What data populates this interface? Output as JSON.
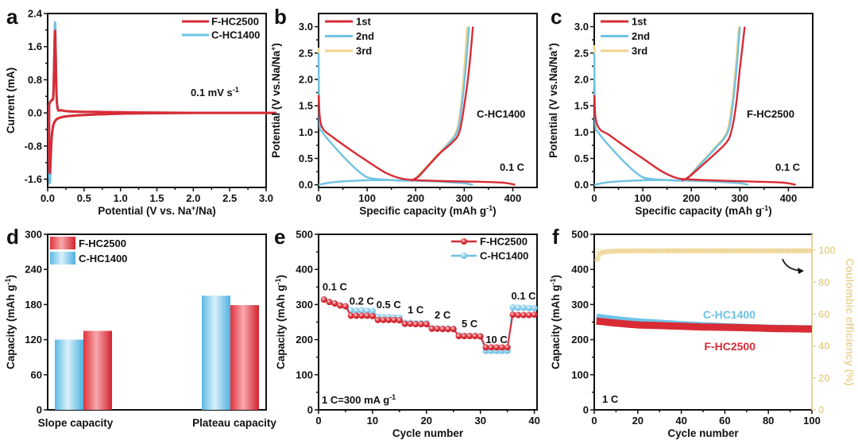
{
  "colors": {
    "red": "#d92b35",
    "blue": "#6ec3e6",
    "yellow": "#f0d38c",
    "ce_axis": "#e8d59a"
  },
  "chart_data": [
    {
      "panel": "a",
      "type": "line",
      "xlabel": "Potential (V vs. Na+/Na)",
      "ylabel": "Current (mA)",
      "xlim": [
        0,
        3.0
      ],
      "ylim": [
        -1.8,
        2.4
      ],
      "xticks": [
        "0.0",
        "0.5",
        "1.0",
        "1.5",
        "2.0",
        "2.5",
        "3.0"
      ],
      "xtick_values": [
        0,
        0.5,
        1.0,
        1.5,
        2.0,
        2.5,
        3.0
      ],
      "yticks": [
        "-1.6",
        "-0.8",
        "0.0",
        "0.8",
        "1.6",
        "2.4"
      ],
      "ytick_values": [
        -1.6,
        -0.8,
        0,
        0.8,
        1.6,
        2.4
      ],
      "annotation": "0.1 mV s-1",
      "legend": [
        "F-HC2500",
        "C-HC1400"
      ],
      "legend_position": "top-right",
      "series": [
        {
          "name": "C-HC1400",
          "color": "blue",
          "x": [
            0.02,
            0.03,
            0.04,
            0.06,
            0.08,
            0.1,
            0.11,
            0.13,
            0.2,
            0.4,
            0.8,
            1.2,
            2.0,
            3.0,
            3.0,
            2.0,
            1.2,
            0.8,
            0.4,
            0.2,
            0.1,
            0.06,
            0.04,
            0.03,
            0.02,
            0.02
          ],
          "y": [
            0.2,
            0.25,
            0.28,
            0.32,
            0.5,
            2.15,
            1.5,
            0.2,
            0.06,
            0.03,
            0.02,
            0.01,
            0.0,
            0.0,
            0.0,
            0.0,
            -0.01,
            -0.03,
            -0.06,
            -0.1,
            -0.2,
            -0.5,
            -1.2,
            -1.7,
            -1.2,
            0.2
          ]
        },
        {
          "name": "F-HC2500",
          "color": "red",
          "x": [
            0.02,
            0.03,
            0.04,
            0.06,
            0.08,
            0.1,
            0.11,
            0.13,
            0.2,
            0.4,
            0.8,
            1.2,
            2.0,
            3.0,
            3.0,
            2.0,
            1.2,
            0.8,
            0.4,
            0.2,
            0.1,
            0.06,
            0.04,
            0.03,
            0.02,
            0.02
          ],
          "y": [
            0.2,
            0.25,
            0.28,
            0.32,
            0.5,
            1.95,
            1.4,
            0.2,
            0.06,
            0.03,
            0.02,
            0.01,
            0.0,
            0.0,
            0.0,
            0.0,
            -0.01,
            -0.03,
            -0.06,
            -0.1,
            -0.2,
            -0.5,
            -1.1,
            -1.45,
            -1.1,
            0.2
          ]
        }
      ]
    },
    {
      "panel": "b",
      "type": "line",
      "xlabel": "Specific capacity (mAh g-1)",
      "ylabel": "Potential (V vs.Na/Na+)",
      "xlim": [
        0,
        450
      ],
      "ylim": [
        -0.05,
        3.25
      ],
      "xticks": [
        "0",
        "100",
        "200",
        "300",
        "400"
      ],
      "xtick_values": [
        0,
        100,
        200,
        300,
        400
      ],
      "yticks": [
        "0.0",
        "0.5",
        "1.0",
        "1.5",
        "2.0",
        "2.5",
        "3.0"
      ],
      "ytick_values": [
        0,
        0.5,
        1.0,
        1.5,
        2.0,
        2.5,
        3.0
      ],
      "annotations": [
        "C-HC1400",
        "0.1 C"
      ],
      "legend": [
        "1st",
        "2nd",
        "3rd"
      ],
      "legend_position": "top-left",
      "series": [
        {
          "name": "1st",
          "color": "red",
          "discharge": {
            "x": [
              0,
              3,
              10,
              30,
              60,
              100,
              140,
              170,
              200,
              260,
              320,
              380,
              405
            ],
            "y": [
              1.7,
              1.25,
              1.05,
              0.9,
              0.7,
              0.45,
              0.22,
              0.12,
              0.09,
              0.07,
              0.06,
              0.04,
              0.0
            ]
          },
          "charge": {
            "x": [
              190,
              205,
              225,
              250,
              275,
              290,
              300,
              310,
              318
            ],
            "y": [
              0.08,
              0.15,
              0.35,
              0.6,
              0.8,
              1.0,
              1.5,
              2.2,
              3.0
            ]
          }
        },
        {
          "name": "2nd",
          "color": "blue",
          "discharge": {
            "x": [
              0,
              2,
              8,
              30,
              60,
              90,
              110,
              150,
              190,
              250,
              300,
              318
            ],
            "y": [
              2.5,
              1.2,
              1.0,
              0.75,
              0.45,
              0.2,
              0.12,
              0.09,
              0.08,
              0.06,
              0.03,
              0.0
            ]
          },
          "charge": {
            "x": [
              0,
              30,
              80,
              140,
              185,
              200,
              230,
              260,
              285,
              295,
              303,
              310
            ],
            "y": [
              0.0,
              0.05,
              0.08,
              0.09,
              0.08,
              0.12,
              0.4,
              0.7,
              1.0,
              1.5,
              2.2,
              3.0
            ]
          }
        },
        {
          "name": "3rd",
          "color": "yellow",
          "discharge": {
            "x": [
              0,
              2,
              8,
              30,
              60,
              90,
              110,
              150,
              190,
              250,
              300,
              315
            ],
            "y": [
              2.6,
              1.2,
              1.0,
              0.75,
              0.45,
              0.2,
              0.12,
              0.09,
              0.08,
              0.06,
              0.03,
              0.0
            ]
          },
          "charge": {
            "x": [
              0,
              30,
              80,
              140,
              183,
              198,
              228,
              258,
              283,
              293,
              300,
              306
            ],
            "y": [
              0.0,
              0.05,
              0.08,
              0.09,
              0.08,
              0.12,
              0.4,
              0.7,
              1.0,
              1.5,
              2.2,
              3.0
            ]
          }
        }
      ]
    },
    {
      "panel": "c",
      "type": "line",
      "xlabel": "Specific capacity (mAh g-1)",
      "ylabel": "Potential (V vs.Na/Na+)",
      "xlim": [
        0,
        450
      ],
      "ylim": [
        -0.05,
        3.25
      ],
      "xticks": [
        "0",
        "100",
        "200",
        "300",
        "400"
      ],
      "xtick_values": [
        0,
        100,
        200,
        300,
        400
      ],
      "yticks": [
        "0.0",
        "0.5",
        "1.0",
        "1.5",
        "2.0",
        "2.5",
        "3.0"
      ],
      "ytick_values": [
        0,
        0.5,
        1.0,
        1.5,
        2.0,
        2.5,
        3.0
      ],
      "annotations": [
        "F-HC2500",
        "0.1 C"
      ],
      "legend": [
        "1st",
        "2nd",
        "3rd"
      ],
      "legend_position": "top-left",
      "series": [
        {
          "name": "1st",
          "color": "red",
          "discharge": {
            "x": [
              0,
              3,
              12,
              30,
              60,
              100,
              140,
              170,
              200,
              260,
              330,
              390,
              415
            ],
            "y": [
              1.7,
              1.25,
              1.05,
              0.95,
              0.75,
              0.5,
              0.25,
              0.13,
              0.1,
              0.08,
              0.06,
              0.04,
              0.0
            ]
          },
          "charge": {
            "x": [
              180,
              195,
              220,
              250,
              272,
              282,
              292,
              300,
              310
            ],
            "y": [
              0.08,
              0.15,
              0.35,
              0.6,
              0.8,
              1.0,
              1.5,
              2.2,
              3.0
            ]
          }
        },
        {
          "name": "2nd",
          "color": "blue",
          "discharge": {
            "x": [
              0,
              2,
              8,
              30,
              60,
              90,
              110,
              150,
              190,
              250,
              300,
              318
            ],
            "y": [
              2.5,
              1.2,
              1.0,
              0.75,
              0.45,
              0.2,
              0.12,
              0.09,
              0.08,
              0.06,
              0.03,
              0.0
            ]
          },
          "charge": {
            "x": [
              0,
              30,
              80,
              140,
              178,
              192,
              220,
              250,
              275,
              285,
              293,
              300
            ],
            "y": [
              0.0,
              0.05,
              0.08,
              0.09,
              0.08,
              0.12,
              0.4,
              0.7,
              1.0,
              1.5,
              2.2,
              3.0
            ]
          }
        },
        {
          "name": "3rd",
          "color": "yellow",
          "discharge": {
            "x": [
              0,
              2,
              8,
              30,
              60,
              90,
              110,
              150,
              190,
              250,
              300,
              312
            ],
            "y": [
              2.65,
              1.2,
              1.0,
              0.75,
              0.45,
              0.2,
              0.12,
              0.09,
              0.08,
              0.06,
              0.03,
              0.0
            ]
          },
          "charge": {
            "x": [
              0,
              30,
              80,
              140,
              176,
              190,
              218,
              248,
              273,
              283,
              291,
              298
            ],
            "y": [
              0.0,
              0.05,
              0.08,
              0.09,
              0.08,
              0.12,
              0.4,
              0.7,
              1.0,
              1.5,
              2.2,
              3.0
            ]
          }
        }
      ]
    },
    {
      "panel": "d",
      "type": "bar",
      "xlabel": "",
      "ylabel": "Capacity (mAh g-1)",
      "ylim": [
        0,
        300
      ],
      "yticks": [
        "0",
        "60",
        "120",
        "180",
        "240",
        "300"
      ],
      "ytick_values": [
        0,
        60,
        120,
        180,
        240,
        300
      ],
      "categories": [
        "Slope capacity",
        "Plateau capacity"
      ],
      "legend": [
        "F-HC2500",
        "C-HC1400"
      ],
      "legend_position": "top-left",
      "series": [
        {
          "name": "C-HC1400",
          "color": "blue",
          "values": [
            120,
            195
          ]
        },
        {
          "name": "F-HC2500",
          "color": "red",
          "values": [
            135,
            179
          ]
        }
      ]
    },
    {
      "panel": "e",
      "type": "line",
      "xlabel": "Cycle number",
      "ylabel": "Capacity (mAh g-1)",
      "xlim": [
        0,
        40.5
      ],
      "ylim": [
        0,
        500
      ],
      "xticks": [
        "0",
        "10",
        "20",
        "30",
        "40"
      ],
      "xtick_values": [
        0,
        10,
        20,
        30,
        40
      ],
      "yticks": [
        "0",
        "100",
        "200",
        "300",
        "400",
        "500"
      ],
      "ytick_values": [
        0,
        100,
        200,
        300,
        400,
        500
      ],
      "legend": [
        "F-HC2500",
        "C-HC1400"
      ],
      "legend_position": "top-right",
      "rate_labels": [
        "0.1 C",
        "0.2 C",
        "0.5 C",
        "1 C",
        "2 C",
        "5 C",
        "10 C",
        "0.1 C"
      ],
      "rate_label_cycles": [
        3,
        8,
        13,
        18,
        23,
        28,
        33,
        38
      ],
      "rate_label_values": [
        340,
        300,
        290,
        275,
        260,
        235,
        190,
        315
      ],
      "note": "1 C=300 mA g-1",
      "series": [
        {
          "name": "C-HC1400",
          "color": "blue",
          "x": [
            1,
            2,
            3,
            4,
            5,
            6,
            7,
            8,
            9,
            10,
            11,
            12,
            13,
            14,
            15,
            16,
            17,
            18,
            19,
            20,
            21,
            22,
            23,
            24,
            25,
            26,
            27,
            28,
            29,
            30,
            31,
            32,
            33,
            34,
            35,
            36,
            37,
            38,
            39,
            40
          ],
          "y": [
            315,
            308,
            303,
            298,
            295,
            283,
            283,
            283,
            282,
            282,
            265,
            264,
            264,
            263,
            263,
            248,
            248,
            247,
            247,
            247,
            233,
            232,
            232,
            232,
            231,
            212,
            211,
            211,
            211,
            210,
            168,
            168,
            168,
            168,
            168,
            292,
            291,
            291,
            290,
            290
          ]
        },
        {
          "name": "F-HC2500",
          "color": "red",
          "x": [
            1,
            2,
            3,
            4,
            5,
            6,
            7,
            8,
            9,
            10,
            11,
            12,
            13,
            14,
            15,
            16,
            17,
            18,
            19,
            20,
            21,
            22,
            23,
            24,
            25,
            26,
            27,
            28,
            29,
            30,
            31,
            32,
            33,
            34,
            35,
            36,
            37,
            38,
            39,
            40
          ],
          "y": [
            314,
            307,
            303,
            297,
            295,
            268,
            268,
            268,
            268,
            267,
            256,
            256,
            256,
            256,
            255,
            245,
            245,
            244,
            244,
            244,
            231,
            231,
            230,
            230,
            230,
            210,
            210,
            210,
            210,
            209,
            178,
            178,
            178,
            178,
            178,
            271,
            270,
            270,
            270,
            271
          ]
        }
      ]
    },
    {
      "panel": "f",
      "type": "line",
      "xlabel": "Cycle number",
      "ylabel": "Capacity (mAh g-1)",
      "ylabel_right": "Coulombic efficiency (%)",
      "xlim": [
        0,
        100
      ],
      "ylim": [
        0,
        500
      ],
      "ylim_right": [
        0,
        110
      ],
      "xticks": [
        "0",
        "20",
        "40",
        "60",
        "80",
        "100"
      ],
      "xtick_values": [
        0,
        20,
        40,
        60,
        80,
        100
      ],
      "yticks": [
        "0",
        "100",
        "200",
        "300",
        "400",
        "500"
      ],
      "ytick_values": [
        0,
        100,
        200,
        300,
        400,
        500
      ],
      "yticks_right": [
        "0",
        "20",
        "40",
        "60",
        "80",
        "100"
      ],
      "ytick_right_values": [
        0,
        20,
        40,
        60,
        80,
        100
      ],
      "annotation": "1 C",
      "series_labels": [
        "C-HC1400",
        "F-HC2500"
      ],
      "series": [
        {
          "name": "C-HC1400",
          "color": "blue",
          "x": [
            1,
            10,
            20,
            30,
            40,
            50,
            60,
            70,
            80,
            90,
            100
          ],
          "y": [
            265,
            258,
            252,
            248,
            244,
            241,
            238,
            236,
            234,
            233,
            232
          ]
        },
        {
          "name": "F-HC2500",
          "color": "red",
          "x": [
            1,
            10,
            20,
            30,
            40,
            50,
            60,
            70,
            80,
            90,
            100
          ],
          "y": [
            253,
            247,
            242,
            240,
            238,
            236,
            235,
            234,
            232,
            231,
            230
          ]
        },
        {
          "name": "Coulombic efficiency",
          "axis": "right",
          "color": "yellow",
          "x": [
            1,
            2,
            3,
            5,
            10,
            20,
            40,
            60,
            80,
            100
          ],
          "y": [
            93,
            97,
            98,
            99,
            99.5,
            99.6,
            99.7,
            99.7,
            99.7,
            99.7
          ]
        }
      ]
    }
  ],
  "panel_labels": [
    "a",
    "b",
    "c",
    "d",
    "e",
    "f"
  ]
}
